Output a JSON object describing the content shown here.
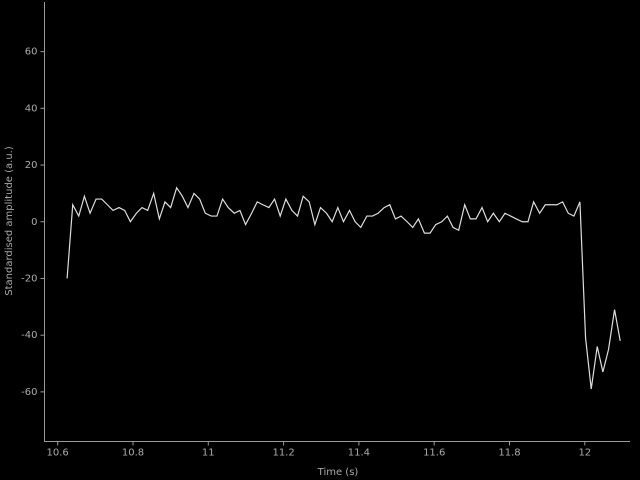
{
  "chart_data": {
    "type": "line",
    "xlabel": "Time (s)",
    "ylabel": "Standardised amplitude (a.u.)",
    "color": "#dddddd",
    "xlim": [
      10.565,
      12.12
    ],
    "ylim": [
      -77.5,
      77.5
    ],
    "xticks": [
      10.6,
      10.8,
      11,
      11.2,
      11.4,
      11.6,
      11.8,
      12
    ],
    "yticks": [
      -60,
      -40,
      -20,
      0,
      20,
      40,
      60
    ],
    "x": [
      10.625,
      10.64,
      10.656,
      10.671,
      10.686,
      10.702,
      10.717,
      10.732,
      10.747,
      10.763,
      10.778,
      10.793,
      10.809,
      10.824,
      10.839,
      10.855,
      10.87,
      10.885,
      10.9,
      10.916,
      10.931,
      10.946,
      10.962,
      10.977,
      10.992,
      11.008,
      11.023,
      11.038,
      11.053,
      11.069,
      11.084,
      11.099,
      11.115,
      11.13,
      11.145,
      11.161,
      11.176,
      11.191,
      11.206,
      11.222,
      11.237,
      11.252,
      11.268,
      11.283,
      11.298,
      11.314,
      11.329,
      11.344,
      11.359,
      11.375,
      11.39,
      11.405,
      11.421,
      11.436,
      11.451,
      11.467,
      11.482,
      11.497,
      11.512,
      11.528,
      11.543,
      11.558,
      11.574,
      11.589,
      11.604,
      11.62,
      11.635,
      11.65,
      11.665,
      11.681,
      11.696,
      11.711,
      11.727,
      11.742,
      11.757,
      11.773,
      11.788,
      11.803,
      11.818,
      11.834,
      11.849,
      11.864,
      11.88,
      11.895,
      11.91,
      11.926,
      11.941,
      11.956,
      11.971,
      11.987,
      12.002,
      12.017,
      12.033,
      12.048,
      12.063,
      12.079,
      12.094
    ],
    "values": [
      -20,
      6,
      2,
      9,
      3,
      8,
      8,
      6,
      4,
      5,
      4,
      0,
      3,
      5,
      4,
      10,
      1,
      7,
      5,
      12,
      9,
      5,
      10,
      8,
      3,
      2,
      2,
      8,
      5,
      3,
      4,
      -1,
      3,
      7,
      6,
      5,
      8,
      2,
      8,
      4,
      2,
      9,
      7,
      -1,
      5,
      3,
      0,
      5,
      0,
      4,
      0,
      -2,
      2,
      2,
      3,
      5,
      6,
      1,
      2,
      0,
      -2,
      1,
      -4,
      -4,
      -1,
      0,
      2,
      -2,
      -3,
      6,
      1,
      1,
      5,
      0,
      3,
      0,
      3,
      2,
      1,
      0,
      0,
      7,
      3,
      6,
      6,
      6,
      7,
      3,
      2,
      7,
      -41,
      -59,
      -44,
      -53,
      -45,
      -31,
      -42
    ]
  }
}
